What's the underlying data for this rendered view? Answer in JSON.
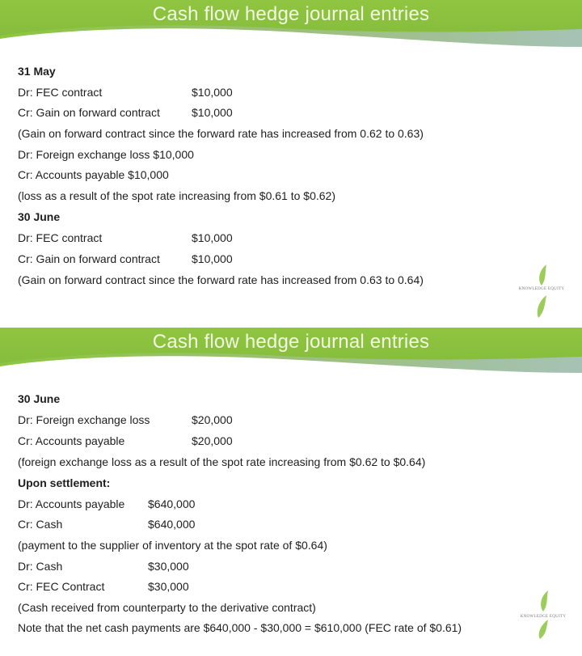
{
  "slides": [
    {
      "title": "Cash flow hedge journal entries",
      "lines": [
        {
          "text": "31 May",
          "bold": true
        },
        {
          "text": "Dr: FEC contract",
          "amount": "$10,000"
        },
        {
          "text": "Cr: Gain on forward contract",
          "amount": "$10,000"
        },
        {
          "text": "(Gain on forward contract since the forward rate has increased from 0.62 to 0.63)"
        },
        {
          "text": "Dr: Foreign exchange loss $10,000"
        },
        {
          "text": "Cr: Accounts payable $10,000"
        },
        {
          "text": "(loss as a result of the spot rate increasing from $0.61 to $0.62)"
        },
        {
          "text": "30 June",
          "bold": true
        },
        {
          "text": "Dr: FEC contract",
          "amount": "$10,000"
        },
        {
          "text": "Cr: Gain on forward contract",
          "amount": "$10,000"
        },
        {
          "text": "(Gain on forward contract since the forward rate has increased from 0.63 to 0.64)"
        }
      ],
      "logo_text": "KNOWLEDGE EQUITY"
    },
    {
      "title": "Cash flow hedge journal entries",
      "lines": [
        {
          "text": "30 June",
          "bold": true
        },
        {
          "text": "Dr: Foreign exchange loss",
          "amount": "$20,000"
        },
        {
          "text": "Cr: Accounts payable",
          "amount": "$20,000"
        },
        {
          "text": "(foreign exchange loss as a result of the spot rate increasing from $0.62 to $0.64)"
        },
        {
          "text": "Upon settlement:",
          "bold": true
        },
        {
          "text": "Dr: Accounts payable",
          "amount": "$640,000"
        },
        {
          "text": "Cr: Cash",
          "amount": "$640,000"
        },
        {
          "text": "(payment to the supplier of inventory at the spot rate of $0.64)"
        },
        {
          "text": "Dr: Cash",
          "amount": "$30,000"
        },
        {
          "text": "Cr: FEC Contract",
          "amount": "$30,000"
        },
        {
          "text": "(Cash received from counterparty to the derivative contract)"
        },
        {
          "text": "Note that the net cash payments are $640,000 - $30,000 = $610,000 (FEC rate of $0.61)"
        }
      ],
      "logo_text": "KNOWLEDGE EQUITY"
    }
  ],
  "colors": {
    "banner": "#8cc63f",
    "banner_wave": "#a9c3b8",
    "title": "#f2f8e4"
  }
}
